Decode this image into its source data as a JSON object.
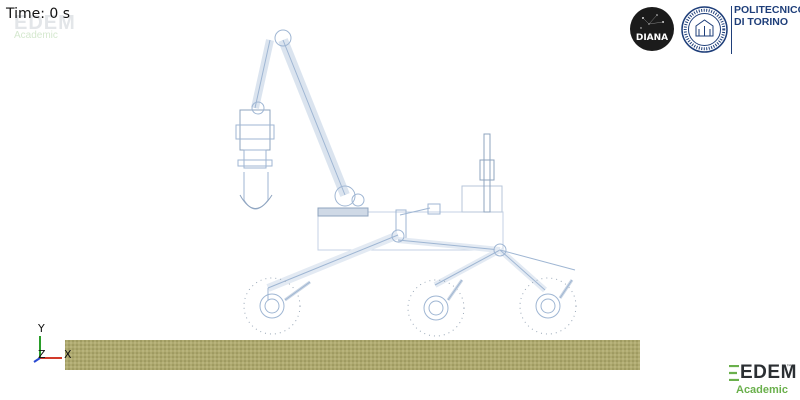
{
  "viewport": {
    "time_label": "Time: 0 s"
  },
  "watermark": {
    "brand": "EDEM",
    "tier": "Academic"
  },
  "logos": {
    "diana": "DIANA",
    "polito_line1": "POLITECNICO",
    "polito_line2": "DI TORINO"
  },
  "edem_logo": {
    "brand": "EDEM",
    "tm": "™",
    "tier": "Academic",
    "accent_color": "#6ab04c"
  },
  "axes": {
    "y": "Y",
    "z": "Z",
    "x": "X"
  },
  "colors": {
    "robot_line": "#9fb6d3",
    "soil": "#a9a46a",
    "polito_blue": "#1f3f7a"
  },
  "icons": [
    "diana-logo-icon",
    "polito-seal-icon",
    "edem-logo-icon",
    "axis-triad-icon"
  ]
}
